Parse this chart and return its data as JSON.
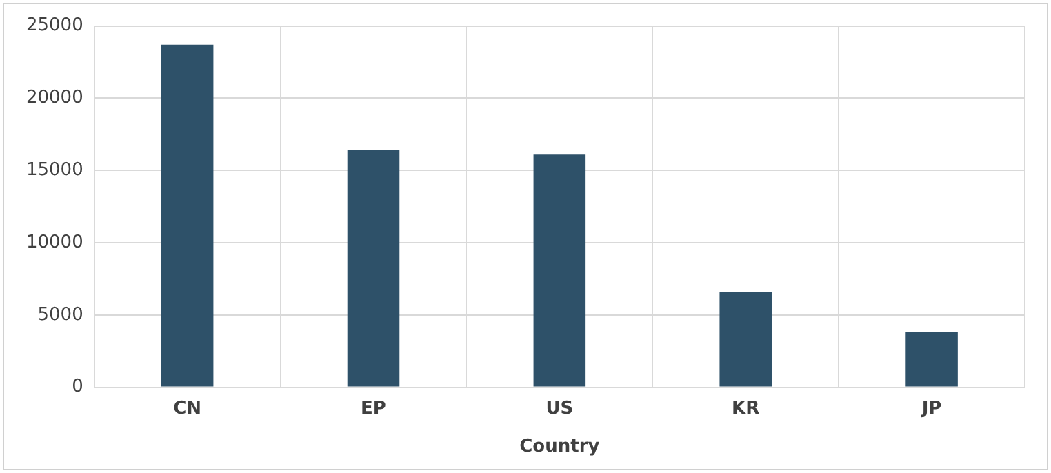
{
  "chart_data": {
    "type": "bar",
    "xlabel": "Country",
    "categories": [
      "CN",
      "EP",
      "US",
      "KR",
      "JP"
    ],
    "values": [
      23700,
      16400,
      16100,
      6600,
      3800
    ],
    "color": "#2e5169",
    "ylim": [
      0,
      25000
    ],
    "yticks": [
      0,
      5000,
      10000,
      15000,
      20000,
      25000
    ],
    "grid": true,
    "legend": false
  }
}
